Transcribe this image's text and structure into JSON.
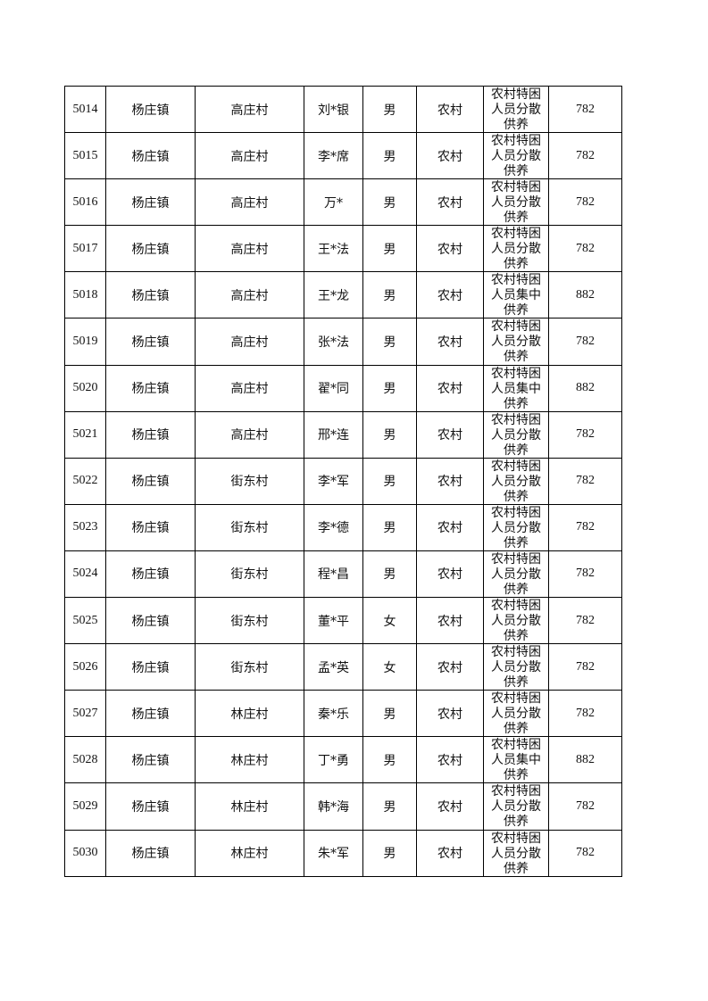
{
  "table": {
    "rows": [
      {
        "id": "5014",
        "town": "杨庄镇",
        "village": "高庄村",
        "name": "刘*银",
        "gender": "男",
        "type": "农村",
        "category": "农村特困人员分散供养",
        "amount": "782"
      },
      {
        "id": "5015",
        "town": "杨庄镇",
        "village": "高庄村",
        "name": "李*席",
        "gender": "男",
        "type": "农村",
        "category": "农村特困人员分散供养",
        "amount": "782"
      },
      {
        "id": "5016",
        "town": "杨庄镇",
        "village": "高庄村",
        "name": "万*",
        "gender": "男",
        "type": "农村",
        "category": "农村特困人员分散供养",
        "amount": "782"
      },
      {
        "id": "5017",
        "town": "杨庄镇",
        "village": "高庄村",
        "name": "王*法",
        "gender": "男",
        "type": "农村",
        "category": "农村特困人员分散供养",
        "amount": "782"
      },
      {
        "id": "5018",
        "town": "杨庄镇",
        "village": "高庄村",
        "name": "王*龙",
        "gender": "男",
        "type": "农村",
        "category": "农村特困人员集中供养",
        "amount": "882"
      },
      {
        "id": "5019",
        "town": "杨庄镇",
        "village": "高庄村",
        "name": "张*法",
        "gender": "男",
        "type": "农村",
        "category": "农村特困人员分散供养",
        "amount": "782"
      },
      {
        "id": "5020",
        "town": "杨庄镇",
        "village": "高庄村",
        "name": "翟*同",
        "gender": "男",
        "type": "农村",
        "category": "农村特困人员集中供养",
        "amount": "882"
      },
      {
        "id": "5021",
        "town": "杨庄镇",
        "village": "高庄村",
        "name": "邢*连",
        "gender": "男",
        "type": "农村",
        "category": "农村特困人员分散供养",
        "amount": "782"
      },
      {
        "id": "5022",
        "town": "杨庄镇",
        "village": "街东村",
        "name": "李*军",
        "gender": "男",
        "type": "农村",
        "category": "农村特困人员分散供养",
        "amount": "782"
      },
      {
        "id": "5023",
        "town": "杨庄镇",
        "village": "街东村",
        "name": "李*德",
        "gender": "男",
        "type": "农村",
        "category": "农村特困人员分散供养",
        "amount": "782"
      },
      {
        "id": "5024",
        "town": "杨庄镇",
        "village": "街东村",
        "name": "程*昌",
        "gender": "男",
        "type": "农村",
        "category": "农村特困人员分散供养",
        "amount": "782"
      },
      {
        "id": "5025",
        "town": "杨庄镇",
        "village": "街东村",
        "name": "董*平",
        "gender": "女",
        "type": "农村",
        "category": "农村特困人员分散供养",
        "amount": "782"
      },
      {
        "id": "5026",
        "town": "杨庄镇",
        "village": "街东村",
        "name": "孟*英",
        "gender": "女",
        "type": "农村",
        "category": "农村特困人员分散供养",
        "amount": "782"
      },
      {
        "id": "5027",
        "town": "杨庄镇",
        "village": "林庄村",
        "name": "秦*乐",
        "gender": "男",
        "type": "农村",
        "category": "农村特困人员分散供养",
        "amount": "782"
      },
      {
        "id": "5028",
        "town": "杨庄镇",
        "village": "林庄村",
        "name": "丁*勇",
        "gender": "男",
        "type": "农村",
        "category": "农村特困人员集中供养",
        "amount": "882"
      },
      {
        "id": "5029",
        "town": "杨庄镇",
        "village": "林庄村",
        "name": "韩*海",
        "gender": "男",
        "type": "农村",
        "category": "农村特困人员分散供养",
        "amount": "782"
      },
      {
        "id": "5030",
        "town": "杨庄镇",
        "village": "林庄村",
        "name": "朱*军",
        "gender": "男",
        "type": "农村",
        "category": "农村特困人员分散供养",
        "amount": "782"
      }
    ]
  }
}
